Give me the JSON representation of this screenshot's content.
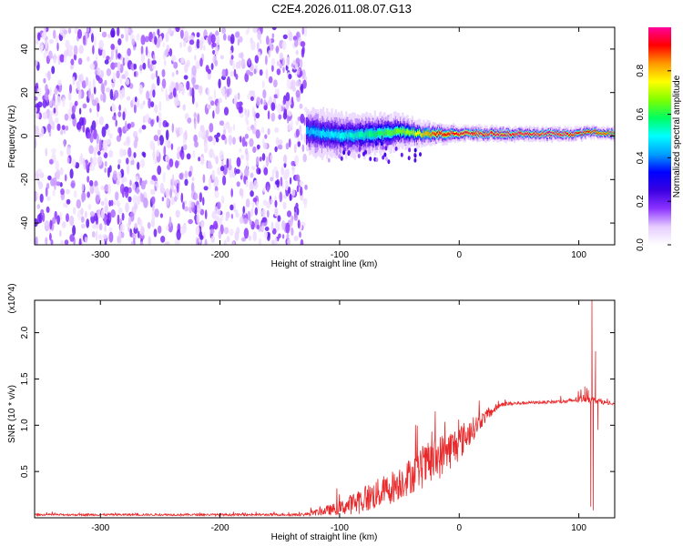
{
  "title": "C2E4.2026.011.08.07.G13",
  "chart_data": [
    {
      "type": "heatmap",
      "xlabel": "Height of straight line (km)",
      "ylabel": "Frequency (Hz)",
      "xlim": [
        -355,
        130
      ],
      "ylim": [
        -50,
        50
      ],
      "x_ticks": [
        -300,
        -200,
        -100,
        0,
        100
      ],
      "y_ticks": [
        -40,
        -20,
        0,
        20,
        40
      ],
      "colorbar": {
        "label": "Normalized spectral amplitude",
        "range": [
          0,
          1
        ],
        "ticks": [
          "0.0",
          "0.2",
          "0.4",
          "0.6",
          "0.8"
        ],
        "colormap": [
          "#ffffff",
          "#e6ccff",
          "#8c33ff",
          "#3a00e0",
          "#0000ff",
          "#00a0ff",
          "#00ffff",
          "#00ff60",
          "#80ff00",
          "#ffff00",
          "#ff9900",
          "#ff0000",
          "#ff0099"
        ]
      },
      "noise_region": {
        "x_range": [
          -355,
          -128
        ],
        "amplitude_range": [
          0.0,
          0.2
        ]
      },
      "signal_track": {
        "x_range": [
          -128,
          130
        ],
        "center_frequency": [
          [
            -128,
            2
          ],
          [
            -110,
            1
          ],
          [
            -90,
            0
          ],
          [
            -70,
            1
          ],
          [
            -50,
            2
          ],
          [
            -30,
            1
          ],
          [
            -10,
            1
          ],
          [
            10,
            1
          ],
          [
            40,
            1
          ],
          [
            70,
            1
          ],
          [
            100,
            1
          ],
          [
            112,
            2
          ],
          [
            130,
            1
          ]
        ],
        "half_width": [
          [
            -128,
            6
          ],
          [
            -60,
            5
          ],
          [
            -30,
            3
          ],
          [
            0,
            2
          ],
          [
            130,
            1.5
          ]
        ],
        "peak_amplitude": [
          [
            -128,
            0.45
          ],
          [
            -80,
            0.55
          ],
          [
            -40,
            0.7
          ],
          [
            -20,
            0.9
          ],
          [
            10,
            0.95
          ],
          [
            80,
            0.97
          ],
          [
            110,
            0.9
          ],
          [
            130,
            0.85
          ]
        ]
      }
    },
    {
      "type": "line",
      "xlabel": "Height of straight line (km)",
      "ylabel": "SNR (10 * v/v)",
      "y_multiplier": "(x10^4)",
      "xlim": [
        -355,
        130
      ],
      "ylim": [
        0,
        23500
      ],
      "x_ticks": [
        -300,
        -200,
        -100,
        0,
        100
      ],
      "y_ticks": [
        5000,
        10000,
        15000,
        20000
      ],
      "y_tick_labels": [
        "0.5",
        "1.0",
        "1.5",
        "2.0"
      ],
      "series": [
        {
          "color": "#e8282a",
          "envelope": [
            {
              "x": -355,
              "base": 300,
              "spread": 200
            },
            {
              "x": -130,
              "base": 300,
              "spread": 250
            },
            {
              "x": -100,
              "base": 800,
              "spread": 1500
            },
            {
              "x": -80,
              "base": 1500,
              "spread": 3000
            },
            {
              "x": -60,
              "base": 2500,
              "spread": 3500
            },
            {
              "x": -40,
              "base": 4000,
              "spread": 4000
            },
            {
              "x": -20,
              "base": 5500,
              "spread": 5000
            },
            {
              "x": 0,
              "base": 7500,
              "spread": 4000
            },
            {
              "x": 20,
              "base": 10500,
              "spread": 1500
            },
            {
              "x": 35,
              "base": 12200,
              "spread": 500
            },
            {
              "x": 60,
              "base": 12400,
              "spread": 300
            },
            {
              "x": 90,
              "base": 12500,
              "spread": 400
            },
            {
              "x": 105,
              "base": 12800,
              "spread": 900
            },
            {
              "x": 130,
              "base": 12200,
              "spread": 250
            }
          ],
          "spikes": [
            {
              "x": 105,
              "value": 14200
            },
            {
              "x": 108,
              "value": 13800
            },
            {
              "x": 110,
              "value": 1200
            },
            {
              "x": 111,
              "value": 23500
            },
            {
              "x": 112,
              "value": 800
            },
            {
              "x": 114,
              "value": 18000
            },
            {
              "x": 116,
              "value": 9500
            }
          ]
        }
      ]
    }
  ]
}
